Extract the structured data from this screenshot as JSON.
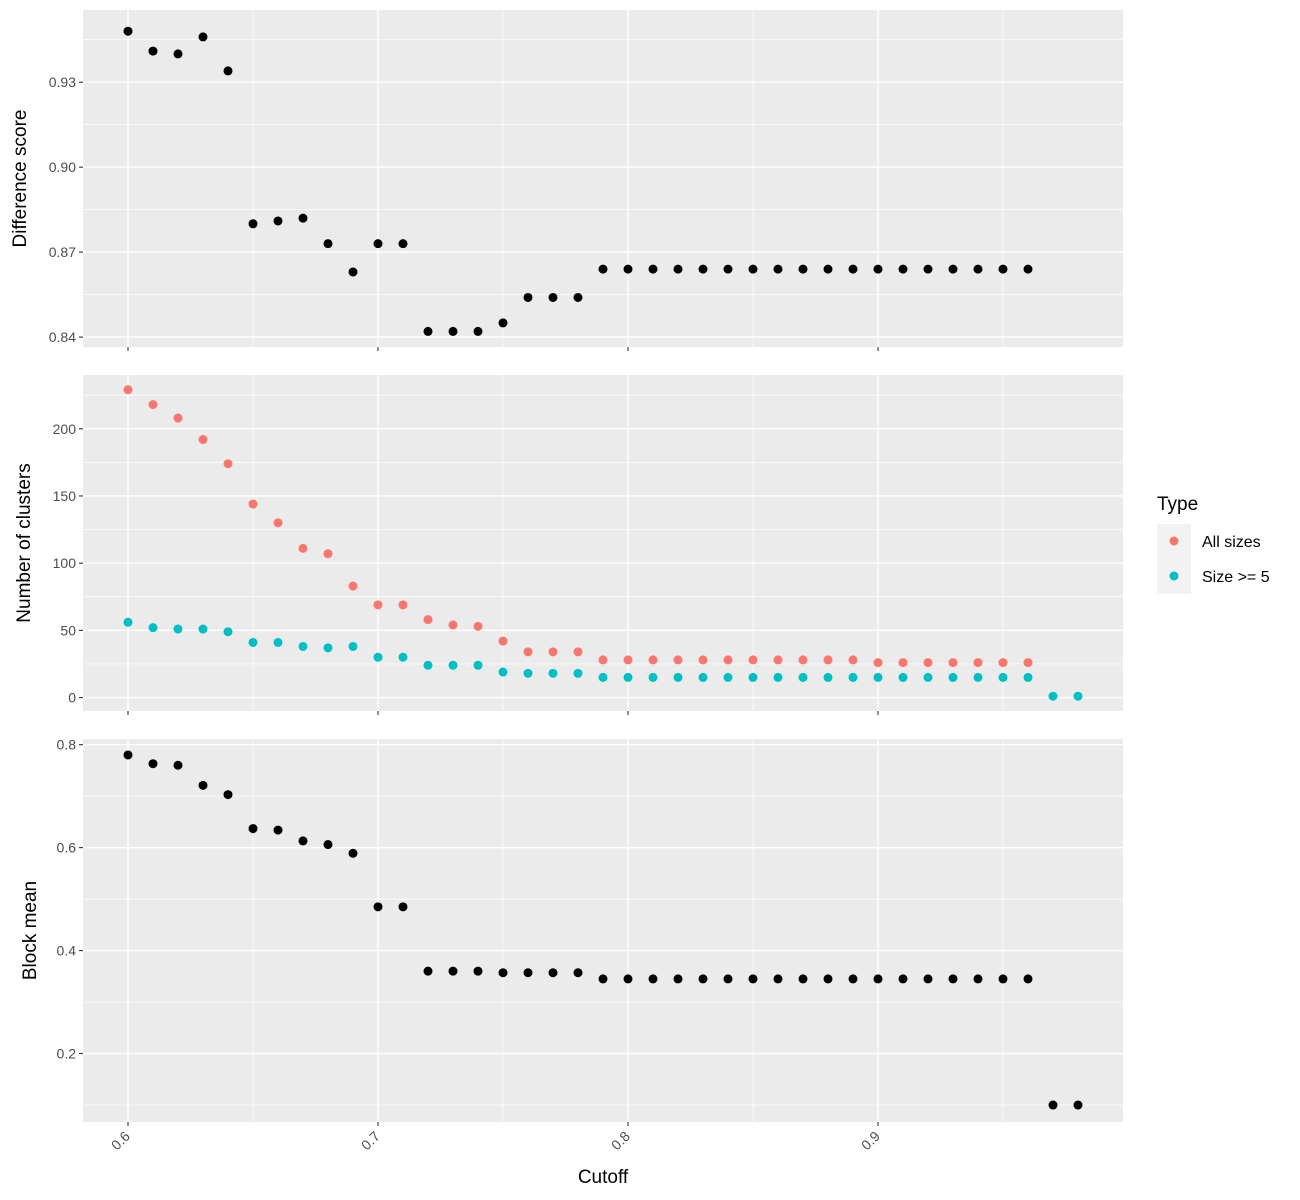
{
  "colors": {
    "panel_bg": "#EBEBEB",
    "grid_major": "#FFFFFF",
    "point_black": "#000000",
    "all_sizes": "#F8766D",
    "size_ge_5": "#00BFC4",
    "tick": "#333333"
  },
  "chart_data": [
    {
      "type": "scatter",
      "ylabel": "Difference score",
      "xlabel": "",
      "xlim": [
        0.582,
        0.998
      ],
      "ylim": [
        0.8365,
        0.9555
      ],
      "xticks": [
        0.6,
        0.7,
        0.8,
        0.9
      ],
      "xticks_labels": [
        "0.6",
        "0.7",
        "0.8",
        "0.9"
      ],
      "yticks": [
        0.84,
        0.87,
        0.9,
        0.93
      ],
      "yticks_labels": [
        "0.84",
        "0.87",
        "0.90",
        "0.93"
      ],
      "grid": true,
      "series": [
        {
          "color": "#000000",
          "x": [
            0.6,
            0.61,
            0.62,
            0.63,
            0.64,
            0.65,
            0.66,
            0.67,
            0.68,
            0.69,
            0.7,
            0.71,
            0.72,
            0.73,
            0.74,
            0.75,
            0.76,
            0.77,
            0.78,
            0.79,
            0.8,
            0.81,
            0.82,
            0.83,
            0.84,
            0.85,
            0.86,
            0.87,
            0.88,
            0.89,
            0.9,
            0.91,
            0.92,
            0.93,
            0.94,
            0.95,
            0.96
          ],
          "y": [
            0.948,
            0.941,
            0.94,
            0.946,
            0.934,
            0.88,
            0.881,
            0.882,
            0.873,
            0.863,
            0.873,
            0.873,
            0.842,
            0.842,
            0.842,
            0.845,
            0.854,
            0.854,
            0.854,
            0.864,
            0.864,
            0.864,
            0.864,
            0.864,
            0.864,
            0.864,
            0.864,
            0.864,
            0.864,
            0.864,
            0.864,
            0.864,
            0.864,
            0.864,
            0.864,
            0.864,
            0.864
          ]
        }
      ]
    },
    {
      "type": "scatter",
      "ylabel": "Number of clusters",
      "xlabel": "",
      "xlim": [
        0.582,
        0.998
      ],
      "ylim": [
        -10,
        240
      ],
      "xticks": [
        0.6,
        0.7,
        0.8,
        0.9
      ],
      "xticks_labels": [
        "0.6",
        "0.7",
        "0.8",
        "0.9"
      ],
      "yticks": [
        0,
        50,
        100,
        150,
        200
      ],
      "yticks_labels": [
        "0",
        "50",
        "100",
        "150",
        "200"
      ],
      "grid": true,
      "legend": {
        "title": "Type",
        "placement": "right",
        "entries": [
          "All sizes",
          "Size >= 5"
        ]
      },
      "series": [
        {
          "name": "All sizes",
          "color": "#F8766D",
          "x": [
            0.6,
            0.61,
            0.62,
            0.63,
            0.64,
            0.65,
            0.66,
            0.67,
            0.68,
            0.69,
            0.7,
            0.71,
            0.72,
            0.73,
            0.74,
            0.75,
            0.76,
            0.77,
            0.78,
            0.79,
            0.8,
            0.81,
            0.82,
            0.83,
            0.84,
            0.85,
            0.86,
            0.87,
            0.88,
            0.89,
            0.9,
            0.91,
            0.92,
            0.93,
            0.94,
            0.95,
            0.96
          ],
          "y": [
            229,
            218,
            208,
            192,
            174,
            144,
            130,
            111,
            107,
            83,
            69,
            69,
            58,
            54,
            53,
            42,
            34,
            34,
            34,
            28,
            28,
            28,
            28,
            28,
            28,
            28,
            28,
            28,
            28,
            28,
            26,
            26,
            26,
            26,
            26,
            26,
            26
          ]
        },
        {
          "name": "Size >= 5",
          "color": "#00BFC4",
          "x": [
            0.6,
            0.61,
            0.62,
            0.63,
            0.64,
            0.65,
            0.66,
            0.67,
            0.68,
            0.69,
            0.7,
            0.71,
            0.72,
            0.73,
            0.74,
            0.75,
            0.76,
            0.77,
            0.78,
            0.79,
            0.8,
            0.81,
            0.82,
            0.83,
            0.84,
            0.85,
            0.86,
            0.87,
            0.88,
            0.89,
            0.9,
            0.91,
            0.92,
            0.93,
            0.94,
            0.95,
            0.96,
            0.97,
            0.98
          ],
          "y": [
            56,
            52,
            51,
            51,
            49,
            41,
            41,
            38,
            37,
            38,
            30,
            30,
            24,
            24,
            24,
            19,
            18,
            18,
            18,
            15,
            15,
            15,
            15,
            15,
            15,
            15,
            15,
            15,
            15,
            15,
            15,
            15,
            15,
            15,
            15,
            15,
            15,
            1,
            1
          ]
        }
      ]
    },
    {
      "type": "scatter",
      "ylabel": "Block mean",
      "xlabel": "Cutoff",
      "xlim": [
        0.582,
        0.998
      ],
      "ylim": [
        0.067,
        0.811
      ],
      "xticks": [
        0.6,
        0.7,
        0.8,
        0.9
      ],
      "xticks_labels": [
        "0.6",
        "0.7",
        "0.8",
        "0.9"
      ],
      "yticks": [
        0.2,
        0.4,
        0.6,
        0.8
      ],
      "yticks_labels": [
        "0.2",
        "0.4",
        "0.6",
        "0.8"
      ],
      "grid": true,
      "series": [
        {
          "color": "#000000",
          "x": [
            0.6,
            0.61,
            0.62,
            0.63,
            0.64,
            0.65,
            0.66,
            0.67,
            0.68,
            0.69,
            0.7,
            0.71,
            0.72,
            0.73,
            0.74,
            0.75,
            0.76,
            0.77,
            0.78,
            0.79,
            0.8,
            0.81,
            0.82,
            0.83,
            0.84,
            0.85,
            0.86,
            0.87,
            0.88,
            0.89,
            0.9,
            0.91,
            0.92,
            0.93,
            0.94,
            0.95,
            0.96,
            0.97,
            0.98
          ],
          "y": [
            0.78,
            0.763,
            0.76,
            0.721,
            0.703,
            0.637,
            0.634,
            0.613,
            0.606,
            0.589,
            0.485,
            0.485,
            0.36,
            0.36,
            0.36,
            0.357,
            0.357,
            0.357,
            0.357,
            0.345,
            0.345,
            0.345,
            0.345,
            0.345,
            0.345,
            0.345,
            0.345,
            0.345,
            0.345,
            0.345,
            0.345,
            0.345,
            0.345,
            0.345,
            0.345,
            0.345,
            0.345,
            0.1,
            0.1
          ]
        }
      ]
    }
  ]
}
